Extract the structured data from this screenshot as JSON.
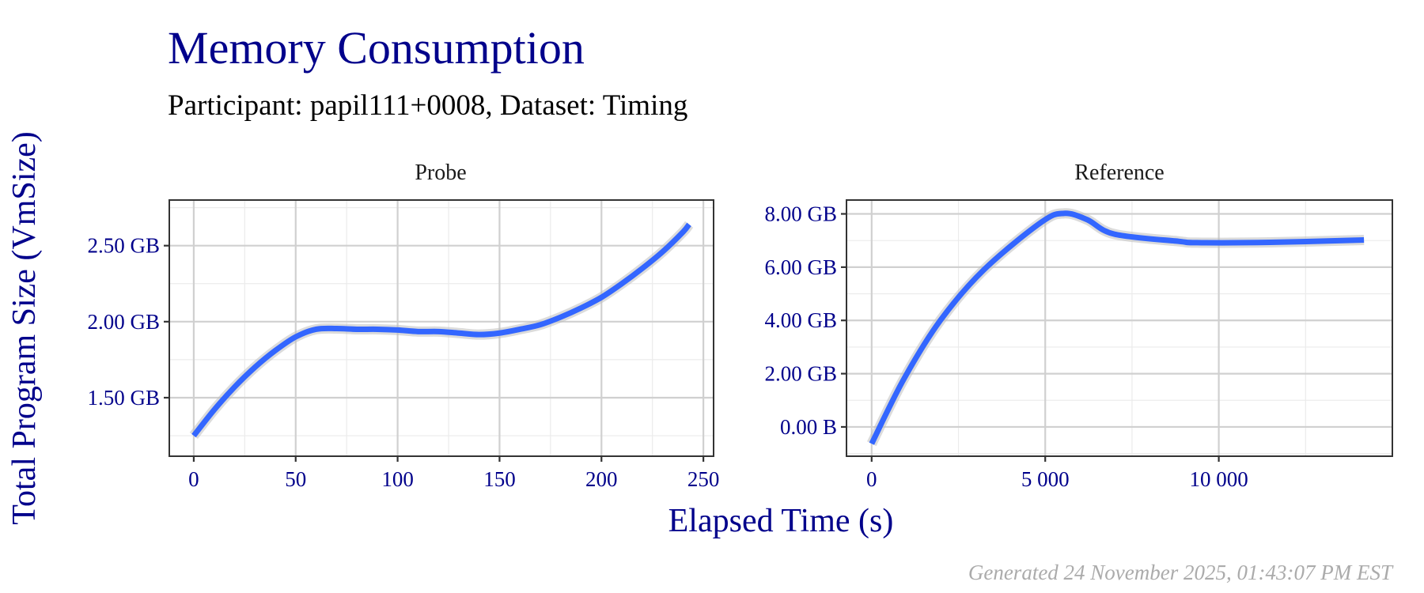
{
  "title": "Memory Consumption",
  "subtitle": "Participant: papil111+0008, Dataset: Timing",
  "caption": "Generated 24 November 2025, 01:43:07 PM EST",
  "colors": {
    "title": "#00008B",
    "line": "#3366FF",
    "ribbon": "#bdbdbd",
    "grid": "#d0d0d0"
  },
  "chart_data": [
    {
      "type": "line",
      "panel": "Probe",
      "xlabel": "Elapsed Time (s)",
      "ylabel": "Total Program Size (VmSize)",
      "xlim": [
        -12,
        255
      ],
      "ylim": [
        1.115,
        2.8
      ],
      "grid": true,
      "x_ticks": [
        0,
        50,
        100,
        150,
        200,
        250
      ],
      "x_tick_labels": [
        "0",
        "50",
        "100",
        "150",
        "200",
        "250"
      ],
      "y_ticks": [
        1.5,
        2.0,
        2.5
      ],
      "y_tick_labels": [
        "1.50 GB",
        "2.00 GB",
        "2.50 GB"
      ],
      "y_unit": "GB",
      "series": [
        {
          "x": [
            0,
            10,
            20,
            30,
            40,
            50,
            60,
            70,
            80,
            90,
            100,
            110,
            120,
            130,
            140,
            150,
            160,
            170,
            180,
            190,
            200,
            210,
            220,
            230,
            240,
            243
          ],
          "y": [
            1.25,
            1.42,
            1.57,
            1.7,
            1.81,
            1.9,
            1.95,
            1.955,
            1.95,
            1.95,
            1.945,
            1.935,
            1.935,
            1.925,
            1.915,
            1.925,
            1.95,
            1.98,
            2.03,
            2.09,
            2.16,
            2.25,
            2.35,
            2.46,
            2.59,
            2.64
          ]
        }
      ]
    },
    {
      "type": "line",
      "panel": "Reference",
      "xlim": [
        -725,
        15000
      ],
      "ylim": [
        -1.1,
        8.52
      ],
      "grid": true,
      "x_ticks": [
        0,
        5000,
        10000
      ],
      "x_tick_labels": [
        "0",
        "5 000",
        "10 000"
      ],
      "y_ticks": [
        0,
        2,
        4,
        6,
        8
      ],
      "y_tick_labels": [
        "0.00 B",
        "2.00 GB",
        "4.00 GB",
        "6.00 GB",
        "8.00 GB"
      ],
      "y_unit": "GB",
      "series": [
        {
          "x": [
            0,
            924,
            1979,
            3232,
            4881,
            5541,
            6200,
            6992,
            8839,
            9367,
            11478,
            14182
          ],
          "y": [
            -0.63,
            1.79,
            4.0,
            5.9,
            7.68,
            8.02,
            7.79,
            7.24,
            6.97,
            6.92,
            6.93,
            7.02
          ]
        }
      ]
    }
  ]
}
